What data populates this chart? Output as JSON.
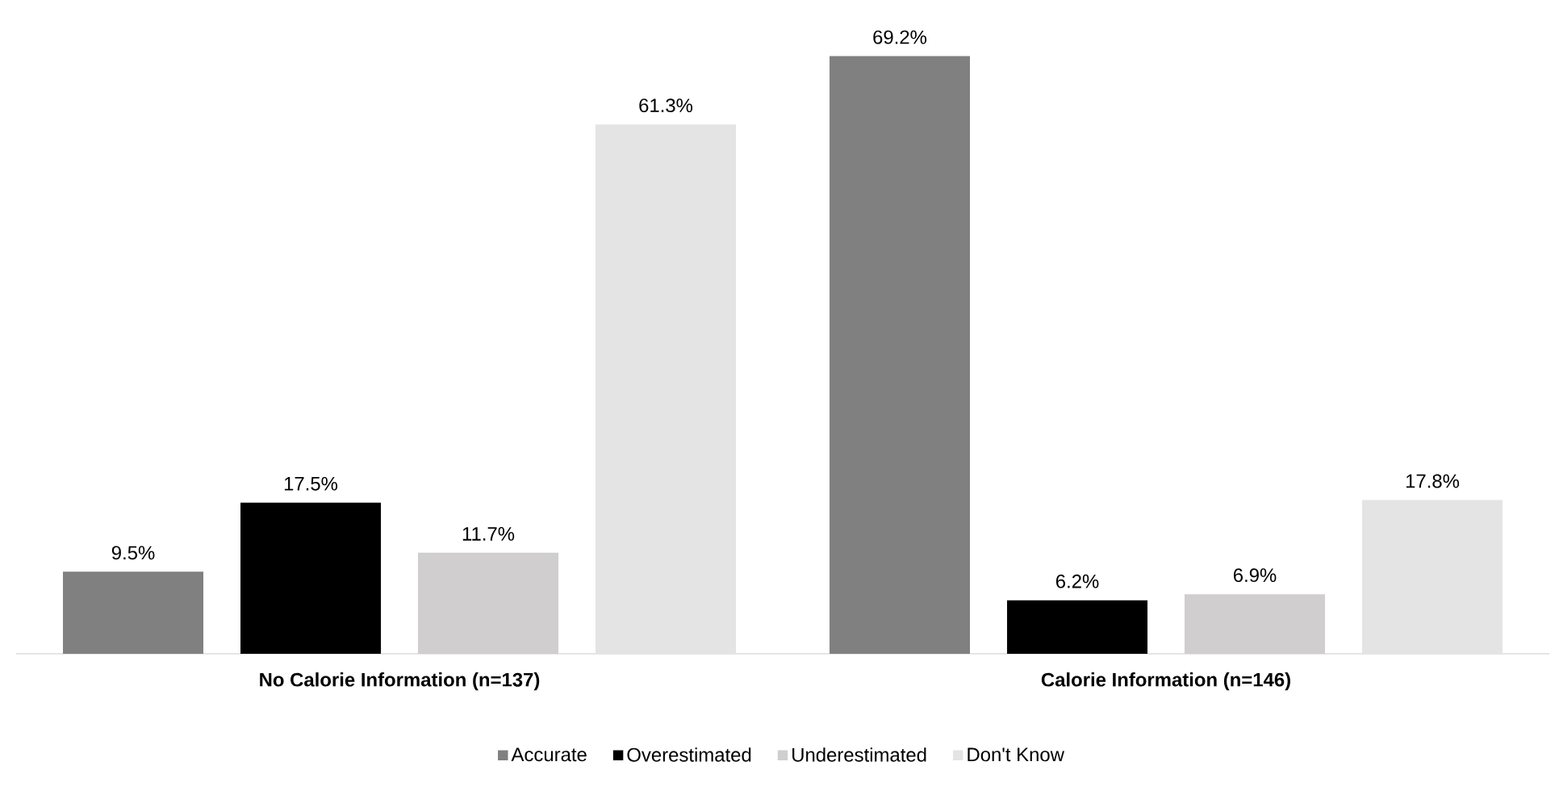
{
  "chart_data": {
    "type": "bar",
    "categories": [
      "No Calorie Information (n=137)",
      "Calorie Information (n=146)"
    ],
    "series": [
      {
        "name": "Accurate",
        "color": "#808080",
        "values": [
          9.5,
          69.2
        ],
        "value_labels": [
          "9.5%",
          "69.2%"
        ]
      },
      {
        "name": "Overestimated",
        "color": "#000000",
        "values": [
          17.5,
          6.2
        ],
        "value_labels": [
          "17.5%",
          "6.2%"
        ]
      },
      {
        "name": "Underestimated",
        "color": "#d0cece",
        "values": [
          11.7,
          6.9
        ],
        "value_labels": [
          "11.7%",
          "6.9%"
        ]
      },
      {
        "name": "Don't Know",
        "color": "#e4e4e4",
        "values": [
          61.3,
          17.8
        ],
        "value_labels": [
          "61.3%",
          "17.8%"
        ]
      }
    ],
    "legend": "bottom",
    "tick_labels": "x"
  }
}
